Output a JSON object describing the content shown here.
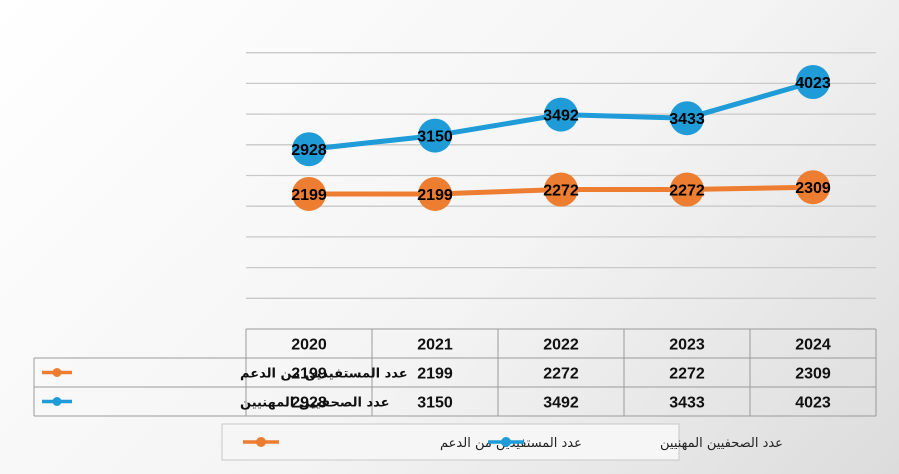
{
  "chart_data": {
    "type": "line",
    "categories": [
      "2020",
      "2021",
      "2022",
      "2023",
      "2024"
    ],
    "series": [
      {
        "name": "عدد المستفيدين من الدعم",
        "color": "#ed7d31",
        "values": [
          2199,
          2199,
          2272,
          2272,
          2309
        ]
      },
      {
        "name": "عدد الصحفيين المهنيين",
        "color": "#1f9bd7",
        "values": [
          2928,
          3150,
          3492,
          3433,
          4023
        ]
      }
    ],
    "data_labels": true,
    "data_table": true,
    "grid": true,
    "legend_position": "bottom"
  }
}
